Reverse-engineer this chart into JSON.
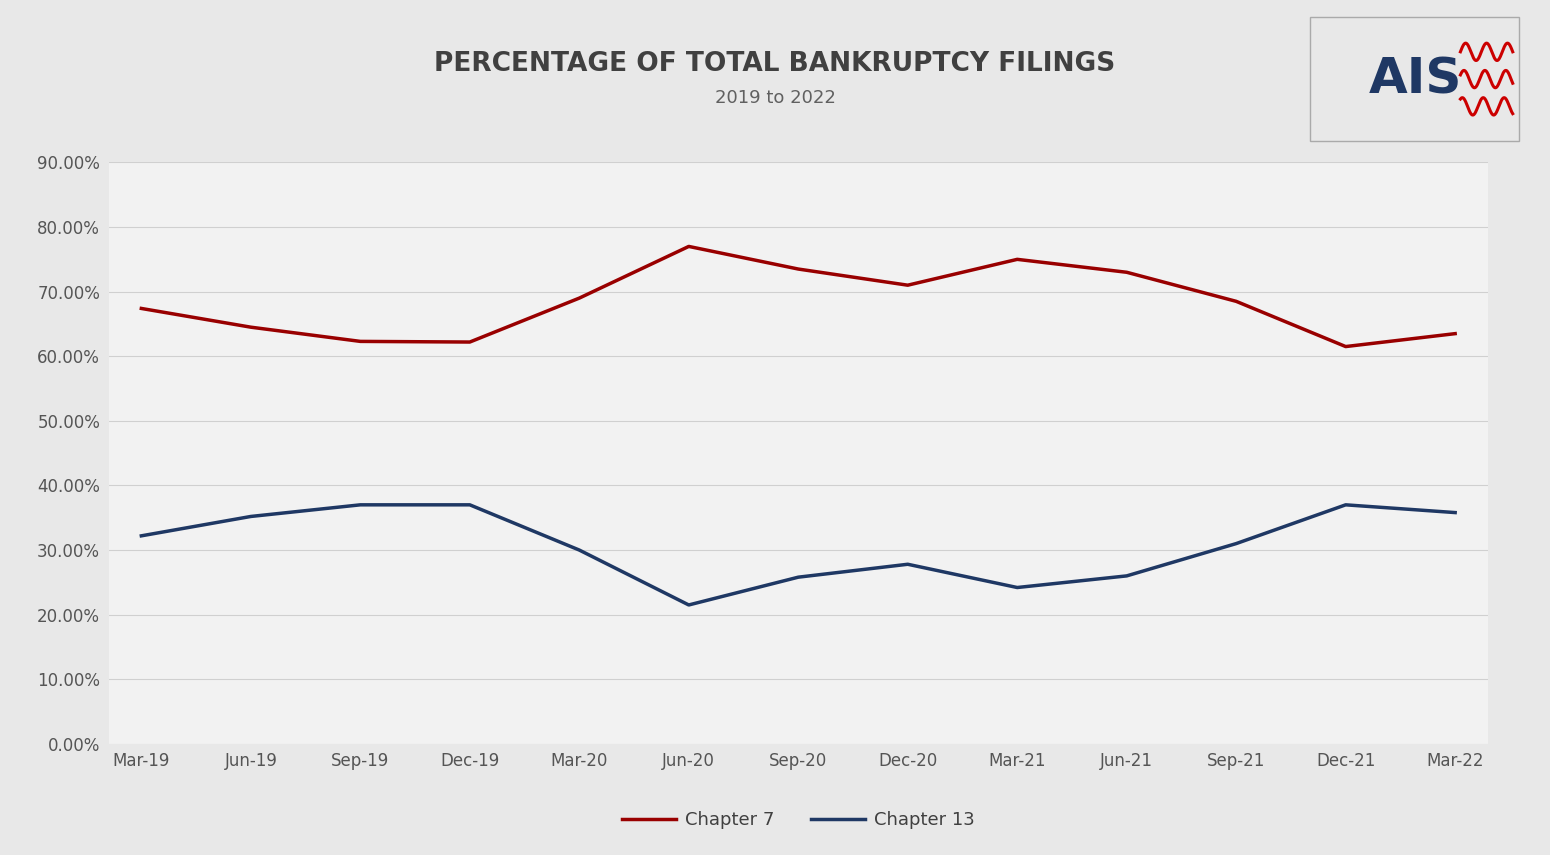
{
  "title": "PERCENTAGE OF TOTAL BANKRUPTCY FILINGS",
  "subtitle": "2019 to 2022",
  "x_labels": [
    "Mar-19",
    "Jun-19",
    "Sep-19",
    "Dec-19",
    "Mar-20",
    "Jun-20",
    "Sep-20",
    "Dec-20",
    "Mar-21",
    "Jun-21",
    "Sep-21",
    "Dec-21",
    "Mar-22"
  ],
  "chapter7": [
    0.674,
    0.645,
    0.623,
    0.622,
    0.69,
    0.77,
    0.735,
    0.71,
    0.75,
    0.73,
    0.685,
    0.615,
    0.635
  ],
  "chapter13": [
    0.322,
    0.352,
    0.37,
    0.37,
    0.3,
    0.215,
    0.258,
    0.278,
    0.242,
    0.26,
    0.31,
    0.37,
    0.358
  ],
  "chapter7_color": "#990000",
  "chapter13_color": "#1f3864",
  "background_color": "#e8e8e8",
  "plot_bg_color": "#f2f2f2",
  "grid_color": "#d0d0d0",
  "title_color": "#404040",
  "subtitle_color": "#606060",
  "ylim": [
    0.0,
    0.9
  ],
  "yticks": [
    0.0,
    0.1,
    0.2,
    0.3,
    0.4,
    0.5,
    0.6,
    0.7,
    0.8,
    0.9
  ],
  "ytick_labels": [
    "0.00%",
    "10.00%",
    "20.00%",
    "30.00%",
    "40.00%",
    "50.00%",
    "60.00%",
    "70.00%",
    "80.00%",
    "90.00%"
  ],
  "line_width": 2.5,
  "legend_chapter7": "Chapter 7",
  "legend_chapter13": "Chapter 13",
  "logo_text": "AIS",
  "logo_text_color": "#1f3864",
  "logo_wave_color": "#cc0000",
  "logo_bg_color": "#ffffff"
}
